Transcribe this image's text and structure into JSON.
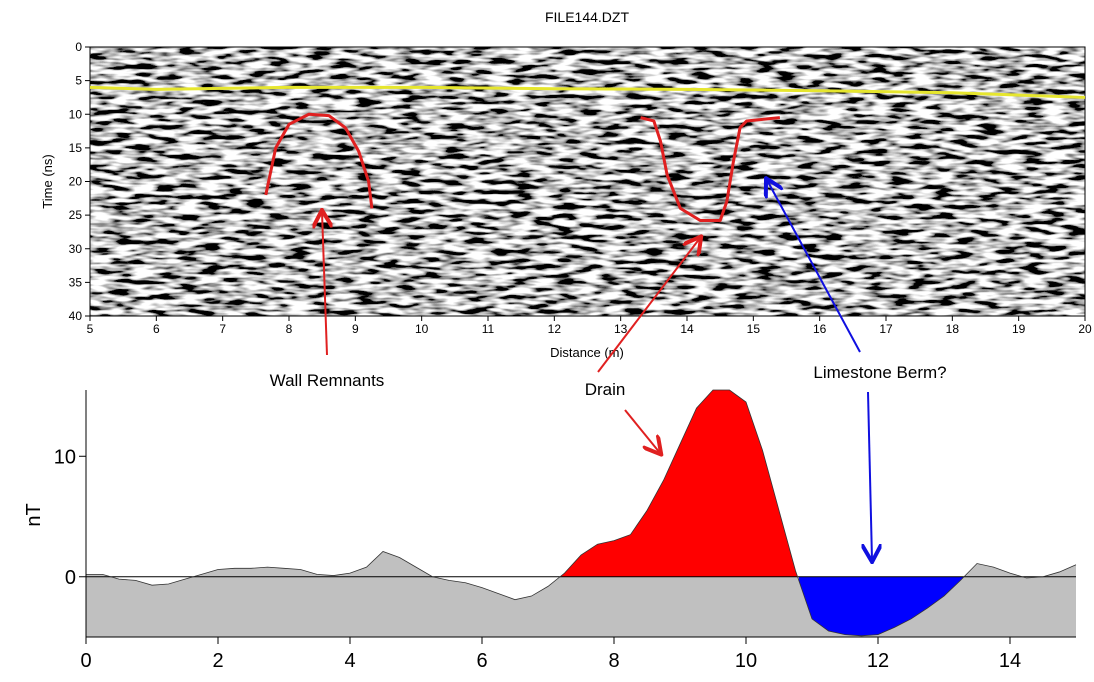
{
  "chart_data": [
    {
      "type": "radargram",
      "title": "FILE144.DZT",
      "x_label": "Distance (m)",
      "y_label": "Time (ns)",
      "xlim": [
        5,
        20
      ],
      "xticks": [
        5,
        6,
        7,
        8,
        9,
        10,
        11,
        12,
        13,
        14,
        15,
        16,
        17,
        18,
        19,
        20
      ],
      "ylim": [
        0,
        40
      ],
      "yticks": [
        0,
        5,
        10,
        15,
        20,
        25,
        30,
        35,
        40
      ],
      "y_inverted": true,
      "overlays": [
        {
          "color": "#e6e62e",
          "x": [
            5,
            6,
            8,
            10,
            12,
            14,
            16,
            18,
            20
          ],
          "values": [
            6,
            6.3,
            6,
            6,
            6.2,
            6.3,
            6.5,
            6.8,
            7.5
          ]
        },
        {
          "color": "#e02020",
          "x": [
            7.65,
            7.8,
            8.0,
            8.3,
            8.6,
            8.85,
            9.05,
            9.2,
            9.25
          ],
          "values": [
            22,
            15,
            11.5,
            10,
            10.2,
            12,
            15.5,
            20,
            24
          ]
        },
        {
          "color": "#e02020",
          "x": [
            13.3,
            13.5,
            13.6,
            13.7,
            13.9,
            14.2,
            14.5,
            14.6,
            14.7,
            14.8,
            14.9,
            15.1,
            15.4
          ],
          "values": [
            10.5,
            11,
            14,
            19,
            24,
            25.8,
            25.8,
            23,
            17,
            12,
            11,
            10.8,
            10.5
          ]
        }
      ],
      "annotations": [
        "Wall Remnants",
        "Drain",
        "Limestone Berm?"
      ]
    },
    {
      "type": "area",
      "y_label": "nT",
      "color": "#c0c0c0",
      "x": [
        0,
        0.25,
        0.5,
        0.75,
        1,
        1.25,
        1.5,
        1.75,
        2,
        2.25,
        2.5,
        2.75,
        3,
        3.25,
        3.5,
        3.75,
        4,
        4.25,
        4.5,
        4.75,
        5,
        5.25,
        5.5,
        5.75,
        6,
        6.25,
        6.5,
        6.75,
        7,
        7.25,
        7.5,
        7.75,
        8,
        8.25,
        8.5,
        8.75,
        9,
        9.25,
        9.5,
        9.75,
        10,
        10.25,
        10.5,
        10.75,
        11,
        11.25,
        11.5,
        11.75,
        12,
        12.25,
        12.5,
        12.75,
        13,
        13.25,
        13.5,
        13.75,
        14,
        14.25,
        14.5,
        14.75,
        15
      ],
      "values": [
        0.2,
        0.2,
        -0.2,
        -0.3,
        -0.7,
        -0.6,
        -0.2,
        0.2,
        0.6,
        0.7,
        0.7,
        0.8,
        0.7,
        0.6,
        0.2,
        0.1,
        0.3,
        0.8,
        2.1,
        1.6,
        0.8,
        0,
        -0.3,
        -0.5,
        -0.9,
        -1.4,
        -1.9,
        -1.6,
        -0.8,
        0.3,
        1.8,
        2.7,
        3,
        3.5,
        5.5,
        8,
        11,
        14,
        15.5,
        15.5,
        14.5,
        10.5,
        5.5,
        0.5,
        -3.5,
        -4.5,
        -4.8,
        -4.9,
        -4.8,
        -4.2,
        -3.5,
        -2.6,
        -1.6,
        -0.3,
        1.1,
        0.8,
        0.3,
        -0.1,
        0,
        0.4,
        1
      ],
      "xlim": [
        0,
        15
      ],
      "xticks": [
        0,
        2,
        4,
        6,
        8,
        10,
        12,
        14
      ],
      "ylim": [
        -5,
        15.5
      ],
      "yticks": [
        0,
        10
      ],
      "fills": [
        {
          "from": 7.2,
          "to": 10.8,
          "side": "positive",
          "color": "#ff0000"
        },
        {
          "from": 10.8,
          "to": 13.3,
          "side": "negative",
          "color": "#0000ff"
        }
      ]
    }
  ]
}
